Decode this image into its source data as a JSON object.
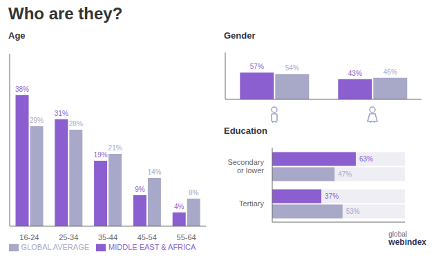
{
  "chart_data": [
    {
      "type": "bar",
      "title": "Who are they?",
      "subtitle": "Age",
      "categories": [
        "16-24",
        "25-34",
        "35-44",
        "45-54",
        "55-64"
      ],
      "series": [
        {
          "name": "MIDDLE EAST & AFRICA",
          "color": "#8B5FCF",
          "values": [
            38,
            31,
            19,
            9,
            4
          ],
          "value_labels": [
            "38%",
            "31%",
            "19%",
            "9%",
            "4%"
          ]
        },
        {
          "name": "GLOBAL AVERAGE",
          "color": "#A8A8C8",
          "values": [
            29,
            28,
            21,
            14,
            8
          ],
          "value_labels": [
            "29%",
            "28%",
            "21%",
            "14%",
            "8%"
          ]
        }
      ],
      "ylim": [
        0,
        50
      ],
      "data_labels": true,
      "tick_labels": "x",
      "legend": "bottom",
      "grid": false
    },
    {
      "type": "bar",
      "title": "Gender",
      "categories": [
        null,
        null
      ],
      "series": [
        {
          "color": "#8B5FCF",
          "values": [
            57,
            43
          ],
          "value_labels": [
            "57%",
            "43%"
          ]
        },
        {
          "color": "#A8A8C8",
          "values": [
            54,
            46
          ],
          "value_labels": [
            "54%",
            "46%"
          ]
        }
      ],
      "ylim": [
        0,
        100
      ],
      "data_labels": true,
      "tick_labels": false,
      "grid": false
    },
    {
      "type": "bar",
      "orientation": "horizontal",
      "title": "Education",
      "categories": [
        "Secondary\nor lower",
        "Tertiary"
      ],
      "series": [
        {
          "color": "#8B5FCF",
          "values": [
            63,
            37
          ],
          "value_labels": [
            "63%",
            "37%"
          ]
        },
        {
          "color": "#A8A8C8",
          "values": [
            47,
            53
          ],
          "value_labels": [
            "47%",
            "53%"
          ]
        }
      ],
      "xlim": [
        0,
        100
      ],
      "data_labels": true,
      "tick_labels": "y",
      "grid": false,
      "annotations": [
        "global",
        "webindex"
      ]
    }
  ]
}
